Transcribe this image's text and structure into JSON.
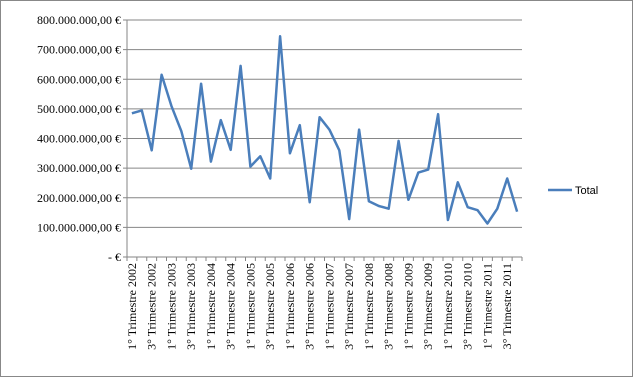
{
  "chart_data": {
    "type": "line",
    "categories": [
      "1° Trimestre 2002",
      null,
      "3° Trimestre 2002",
      null,
      "1° Trimestre 2003",
      null,
      "3° Trimestre 2003",
      null,
      "1° Trimestre 2004",
      null,
      "3° Trimestre 2004",
      null,
      "1° Trimestre 2005",
      null,
      "3° Trimestre 2005",
      null,
      "1° Trimestre 2006",
      null,
      "3° Trimestre 2006",
      null,
      "1° Trimestre 2007",
      null,
      "3° Trimestre 2007",
      null,
      "1° Trimestre 2008",
      null,
      "3° Trimestre 2008",
      null,
      "1° Trimestre 2009",
      null,
      "3° Trimestre 2009",
      null,
      "1° Trimestre 2010",
      null,
      "3° Trimestre 2010",
      null,
      "1° Trimestre 2011",
      null,
      "3° Trimestre 2011",
      null
    ],
    "series": [
      {
        "name": "Total",
        "color": "#4a7ebb",
        "values": [
          485000000,
          495000000,
          360000000,
          615000000,
          510000000,
          425000000,
          298000000,
          585000000,
          322000000,
          462000000,
          362000000,
          645000000,
          305000000,
          340000000,
          265000000,
          745000000,
          350000000,
          445000000,
          185000000,
          472000000,
          430000000,
          360000000,
          128000000,
          430000000,
          188000000,
          172000000,
          163000000,
          392000000,
          193000000,
          285000000,
          295000000,
          482000000,
          125000000,
          252000000,
          168000000,
          158000000,
          113000000,
          163000000,
          265000000,
          153000000
        ]
      }
    ],
    "ylim": [
      0,
      800000000
    ],
    "yticks": [
      {
        "value": 0,
        "label": "-   €"
      },
      {
        "value": 100000000,
        "label": "100.000.000,00 €"
      },
      {
        "value": 200000000,
        "label": "200.000.000,00 €"
      },
      {
        "value": 300000000,
        "label": "300.000.000,00 €"
      },
      {
        "value": 400000000,
        "label": "400.000.000,00 €"
      },
      {
        "value": 500000000,
        "label": "500.000.000,00 €"
      },
      {
        "value": 600000000,
        "label": "600.000.000,00 €"
      },
      {
        "value": 700000000,
        "label": "700.000.000,00 €"
      },
      {
        "value": 800000000,
        "label": "800.000.000,00 €"
      }
    ],
    "grid": true,
    "legend": "right"
  }
}
